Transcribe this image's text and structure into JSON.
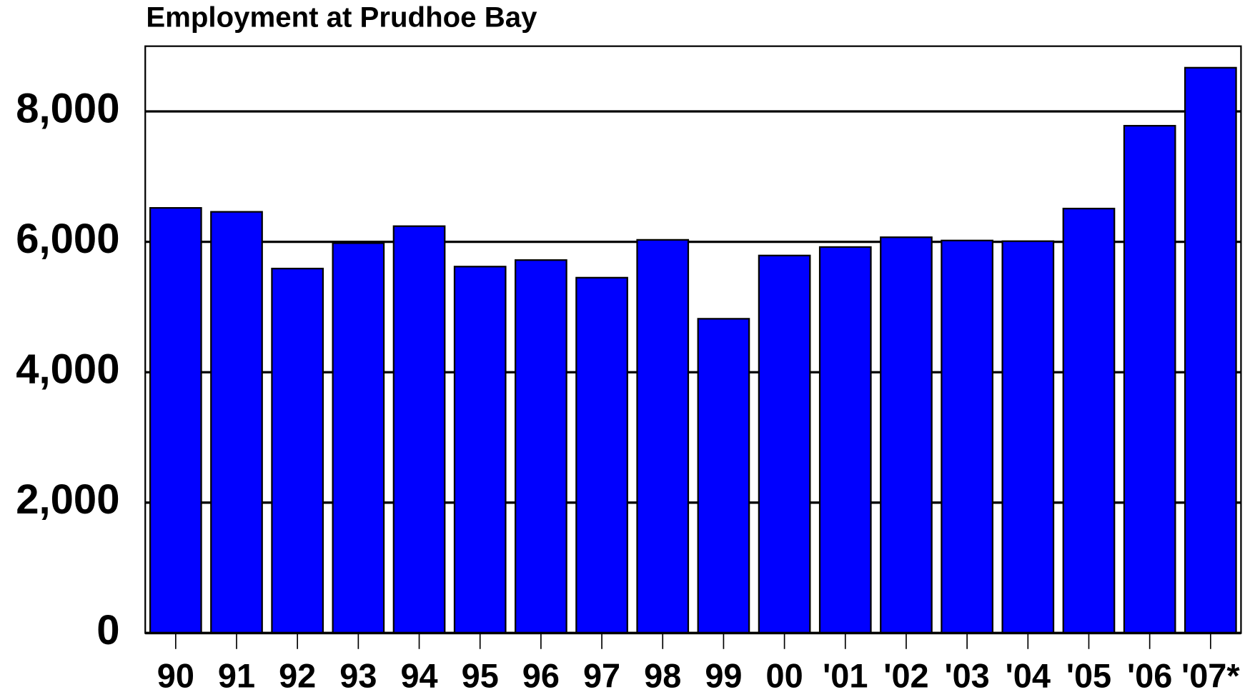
{
  "chart_data": {
    "type": "bar",
    "title": "Employment at Prudhoe Bay",
    "categories": [
      "90",
      "91",
      "92",
      "93",
      "94",
      "95",
      "96",
      "97",
      "98",
      "99",
      "00",
      "'01",
      "'02",
      "'03",
      "'04",
      "'05",
      "'06",
      "'07*"
    ],
    "values": [
      6520,
      6460,
      5590,
      5980,
      6240,
      5620,
      5720,
      5450,
      6030,
      4820,
      5790,
      5920,
      6070,
      6020,
      6010,
      6510,
      7780,
      8670
    ],
    "color": "#0000ff",
    "ylim": [
      0,
      9000
    ],
    "yticks": [
      0,
      {
        "value": 2000,
        "label": "2,000"
      },
      {
        "value": 4000,
        "label": "4,000"
      },
      {
        "value": 6000,
        "label": "6,000"
      },
      {
        "value": 8000,
        "label": "8,000"
      }
    ],
    "grid": true
  }
}
